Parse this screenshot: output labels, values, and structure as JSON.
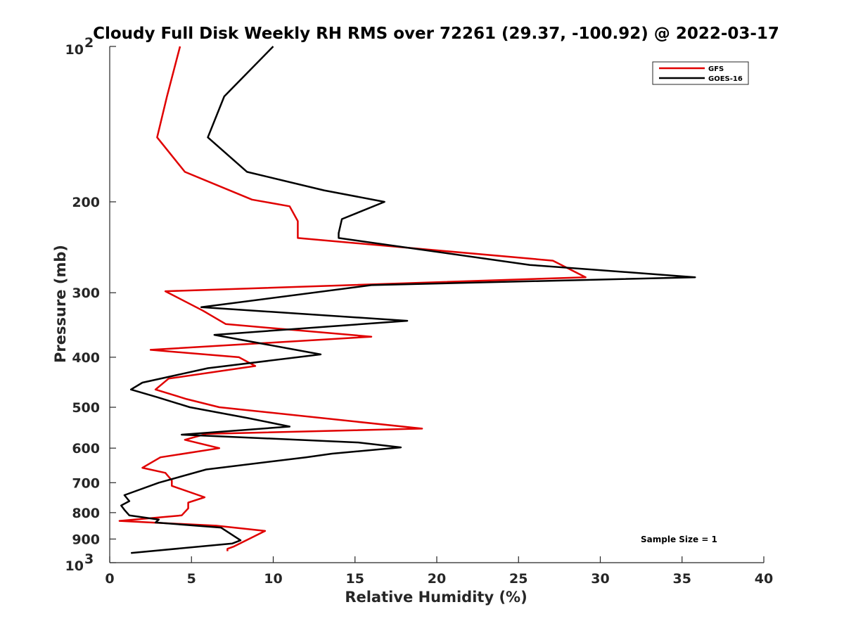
{
  "chart_data": {
    "type": "line",
    "title": "Cloudy Full Disk Weekly RH RMS over 72261 (29.37, -100.92) @ 2022-03-17",
    "xlabel": "Relative Humidity (%)",
    "ylabel": "Pressure (mb)",
    "xlim": [
      0,
      40
    ],
    "ylim": [
      100,
      1000
    ],
    "y_scale": "log",
    "y_reversed": true,
    "x_ticks": [
      "0",
      "5",
      "10",
      "15",
      "20",
      "25",
      "30",
      "35",
      "40"
    ],
    "y_ticks": [
      {
        "value": 100,
        "base": "10",
        "exp": "2",
        "label": ""
      },
      {
        "value": 200,
        "label": "200"
      },
      {
        "value": 300,
        "label": "300"
      },
      {
        "value": 400,
        "label": "400"
      },
      {
        "value": 500,
        "label": "500"
      },
      {
        "value": 600,
        "label": "600"
      },
      {
        "value": 700,
        "label": "700"
      },
      {
        "value": 800,
        "label": "800"
      },
      {
        "value": 900,
        "label": "900"
      },
      {
        "value": 1000,
        "base": "10",
        "exp": "3",
        "label": ""
      }
    ],
    "legend_position": "top-right",
    "annotation": "Sample Size = 1",
    "series": [
      {
        "name": "GFS",
        "color": "#e00000",
        "points": [
          [
            4.3,
            100
          ],
          [
            3.5,
            125
          ],
          [
            2.9,
            150
          ],
          [
            4.6,
            175
          ],
          [
            8.7,
            198
          ],
          [
            11,
            204
          ],
          [
            11.5,
            218
          ],
          [
            11.5,
            235
          ],
          [
            27.1,
            260
          ],
          [
            29.1,
            280
          ],
          [
            3.4,
            298
          ],
          [
            5.7,
            325
          ],
          [
            7.1,
            345
          ],
          [
            16,
            365
          ],
          [
            2.5,
            387
          ],
          [
            7.9,
            400
          ],
          [
            8.9,
            416
          ],
          [
            3.6,
            440
          ],
          [
            2.8,
            462
          ],
          [
            4.7,
            482
          ],
          [
            6.7,
            500
          ],
          [
            19.1,
            550
          ],
          [
            5.9,
            563
          ],
          [
            4.6,
            578
          ],
          [
            6.7,
            600
          ],
          [
            3.1,
            625
          ],
          [
            2.0,
            655
          ],
          [
            3.4,
            670
          ],
          [
            3.8,
            693
          ],
          [
            3.8,
            710
          ],
          [
            5.8,
            747
          ],
          [
            4.8,
            765
          ],
          [
            4.8,
            785
          ],
          [
            4.4,
            810
          ],
          [
            0.6,
            830
          ],
          [
            6.5,
            848
          ],
          [
            9.5,
            868
          ],
          [
            7.6,
            930
          ],
          [
            7.2,
            940
          ],
          [
            7.2,
            950
          ]
        ]
      },
      {
        "name": "GOES-16",
        "color": "#000000",
        "points": [
          [
            10,
            100
          ],
          [
            7,
            125
          ],
          [
            6,
            150
          ],
          [
            8.4,
            175
          ],
          [
            13.1,
            190
          ],
          [
            16.8,
            200
          ],
          [
            14.2,
            216
          ],
          [
            14,
            230
          ],
          [
            14,
            235
          ],
          [
            25.7,
            265
          ],
          [
            35.8,
            280
          ],
          [
            16,
            290
          ],
          [
            5.6,
            320
          ],
          [
            18.2,
            340
          ],
          [
            6.4,
            362
          ],
          [
            12.9,
            395
          ],
          [
            6,
            420
          ],
          [
            2,
            448
          ],
          [
            1.3,
            462
          ],
          [
            2.9,
            478
          ],
          [
            4.9,
            500
          ],
          [
            8.5,
            525
          ],
          [
            11,
            545
          ],
          [
            4.4,
            565
          ],
          [
            15.2,
            585
          ],
          [
            17.8,
            598
          ],
          [
            13.6,
            615
          ],
          [
            12,
            625
          ],
          [
            5.9,
            660
          ],
          [
            3,
            700
          ],
          [
            0.9,
            740
          ],
          [
            1.2,
            760
          ],
          [
            0.7,
            775
          ],
          [
            0.9,
            790
          ],
          [
            1.2,
            810
          ],
          [
            3,
            825
          ],
          [
            2.8,
            836
          ],
          [
            6.8,
            855
          ],
          [
            8,
            905
          ],
          [
            7.5,
            918
          ],
          [
            1.3,
            958
          ]
        ]
      }
    ]
  }
}
